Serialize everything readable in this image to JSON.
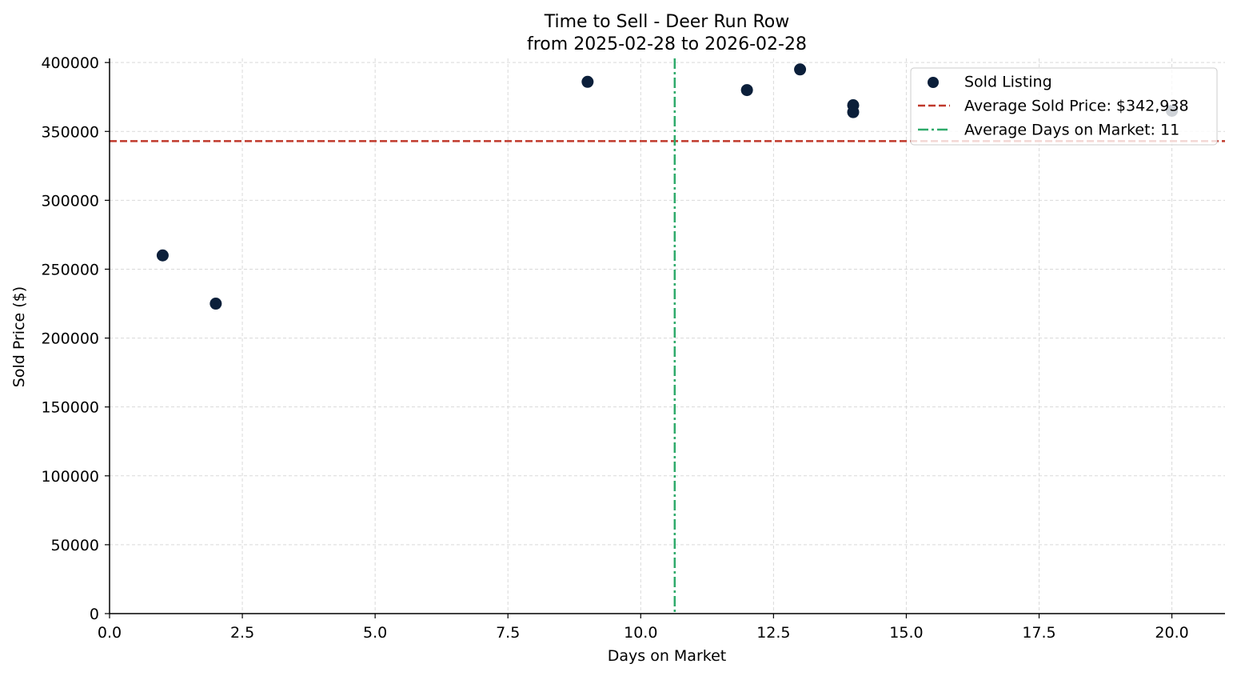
{
  "chart_data": {
    "type": "scatter",
    "title": "Time to Sell - Deer Run Row",
    "subtitle": "from 2025-02-28 to 2026-02-28",
    "xlabel": "Days on Market",
    "ylabel": "Sold Price ($)",
    "xlim": [
      0,
      21
    ],
    "ylim": [
      0,
      403000
    ],
    "x_ticks": [
      "0.0",
      "2.5",
      "5.0",
      "7.5",
      "10.0",
      "12.5",
      "15.0",
      "17.5",
      "20.0"
    ],
    "y_ticks": [
      "0",
      "50000",
      "100000",
      "150000",
      "200000",
      "250000",
      "300000",
      "350000",
      "400000"
    ],
    "grid": true,
    "legend_position": "top-right",
    "series": [
      {
        "name": "Sold Listing",
        "color": "#0b1f3a",
        "points": [
          {
            "x": 1,
            "y": 260000
          },
          {
            "x": 2,
            "y": 225000
          },
          {
            "x": 9,
            "y": 386000
          },
          {
            "x": 12,
            "y": 380000
          },
          {
            "x": 13,
            "y": 395000
          },
          {
            "x": 14,
            "y": 369000
          },
          {
            "x": 14,
            "y": 364000
          },
          {
            "x": 20,
            "y": 365000
          }
        ]
      }
    ],
    "reference_lines": [
      {
        "orientation": "horizontal",
        "value": 342938,
        "label": "Average Sold Price: $342,938",
        "color": "#c0392b",
        "style": "dashed"
      },
      {
        "orientation": "vertical",
        "value": 10.64,
        "label": "Average Days on Market: 11",
        "color": "#2eaa6a",
        "style": "dashdot"
      }
    ]
  }
}
